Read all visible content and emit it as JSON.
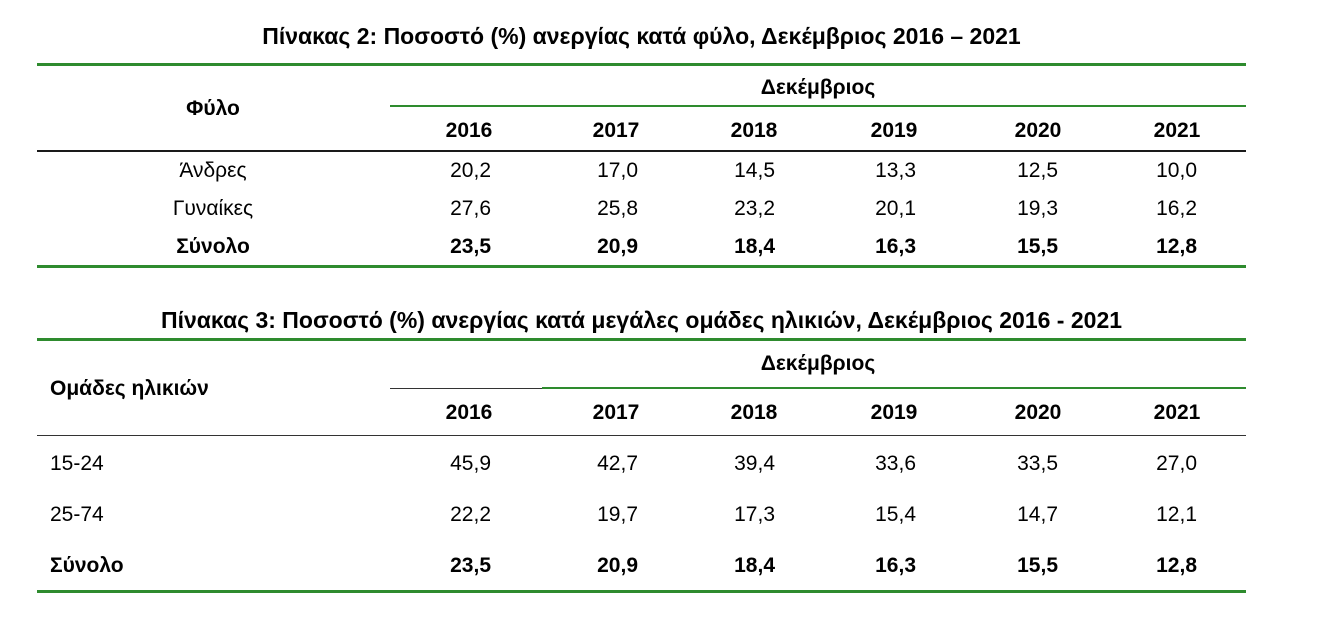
{
  "table2": {
    "title": "Πίνακας 2: Ποσοστό (%) ανεργίας κατά φύλο, Δεκέμβριος 2016 – 2021",
    "row_header": "Φύλο",
    "group_header": "Δεκέμβριος",
    "years": [
      "2016",
      "2017",
      "2018",
      "2019",
      "2020",
      "2021"
    ],
    "rows": [
      {
        "label": "Άνδρες",
        "values": [
          "20,2",
          "17,0",
          "14,5",
          "13,3",
          "12,5",
          "10,0"
        ]
      },
      {
        "label": "Γυναίκες",
        "values": [
          "27,6",
          "25,8",
          "23,2",
          "20,1",
          "19,3",
          "16,2"
        ]
      },
      {
        "label": "Σύνολο",
        "values": [
          "23,5",
          "20,9",
          "18,4",
          "16,3",
          "15,5",
          "12,8"
        ]
      }
    ]
  },
  "table3": {
    "title": "Πίνακας 3: Ποσοστό (%) ανεργίας κατά μεγάλες ομάδες ηλικιών, Δεκέμβριος 2016 - 2021",
    "row_header": "Ομάδες ηλικιών",
    "group_header": "Δεκέμβριος",
    "years": [
      "2016",
      "2017",
      "2018",
      "2019",
      "2020",
      "2021"
    ],
    "rows": [
      {
        "label": "15-24",
        "values": [
          "45,9",
          "42,7",
          "39,4",
          "33,6",
          "33,5",
          "27,0"
        ]
      },
      {
        "label": "25-74",
        "values": [
          "22,2",
          "19,7",
          "17,3",
          "15,4",
          "14,7",
          "12,1"
        ]
      },
      {
        "label": "Σύνολο",
        "values": [
          "23,5",
          "20,9",
          "18,4",
          "16,3",
          "15,5",
          "12,8"
        ]
      }
    ]
  },
  "colors": {
    "rule_green": "#2e8b2e",
    "rule_black": "#1a1a1a",
    "text": "#000000"
  }
}
